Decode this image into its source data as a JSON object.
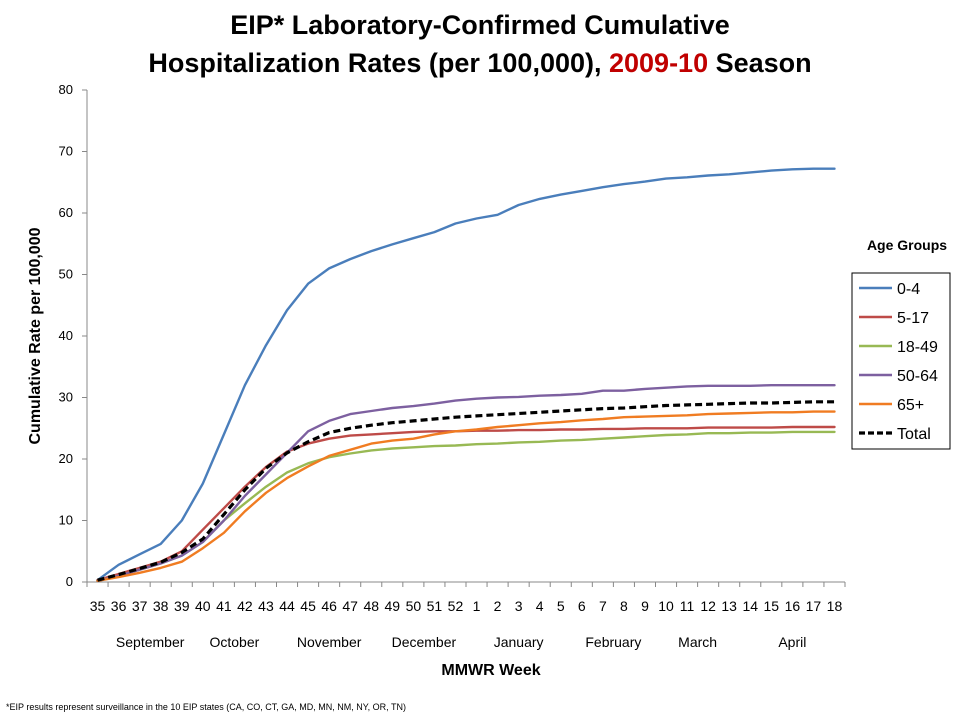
{
  "chart_data": {
    "type": "line",
    "title_line1": "EIP* Laboratory-Confirmed Cumulative",
    "title_line2_before": "Hospitalization Rates (per 100,000), ",
    "title_line2_highlight": "2009-10",
    "title_line2_after": " Season",
    "title_highlight_color": "#c00000",
    "xlabel": "MMWR Week",
    "ylabel": "Cumulative Rate per 100,000",
    "ylim": [
      0,
      80
    ],
    "yticks": [
      "0",
      "10",
      "20",
      "30",
      "40",
      "50",
      "60",
      "70",
      "80"
    ],
    "categories": [
      "35",
      "36",
      "37",
      "38",
      "39",
      "40",
      "41",
      "42",
      "43",
      "44",
      "45",
      "46",
      "47",
      "48",
      "49",
      "50",
      "51",
      "52",
      "1",
      "2",
      "3",
      "4",
      "5",
      "6",
      "7",
      "8",
      "9",
      "10",
      "11",
      "12",
      "13",
      "14",
      "15",
      "16",
      "17",
      "18"
    ],
    "months": [
      {
        "label": "September",
        "week_index": 2.5
      },
      {
        "label": "October",
        "week_index": 6.5
      },
      {
        "label": "November",
        "week_index": 11
      },
      {
        "label": "December",
        "week_index": 15.5
      },
      {
        "label": "January",
        "week_index": 20
      },
      {
        "label": "February",
        "week_index": 24.5
      },
      {
        "label": "March",
        "week_index": 28.5
      },
      {
        "label": "April",
        "week_index": 33
      }
    ],
    "legend_title": "Age Groups",
    "legend_position": "right",
    "grid": false,
    "series": [
      {
        "name": "0-4",
        "color": "#4a7ebb",
        "dashed": false,
        "values": [
          0.3,
          2.8,
          4.5,
          6.2,
          10,
          16,
          24,
          32,
          38.5,
          44.2,
          48.5,
          51,
          52.5,
          53.8,
          54.9,
          55.9,
          56.9,
          58.3,
          59.1,
          59.7,
          61.3,
          62.3,
          63,
          63.6,
          64.2,
          64.7,
          65.1,
          65.6,
          65.8,
          66.1,
          66.3,
          66.6,
          66.9,
          67.1,
          67.2,
          67.2
        ]
      },
      {
        "name": "5-17",
        "color": "#be4b48",
        "dashed": false,
        "values": [
          0.3,
          1.3,
          2.3,
          3.3,
          5,
          8.5,
          12,
          15.5,
          18.7,
          21.2,
          22.5,
          23.3,
          23.8,
          24,
          24.2,
          24.4,
          24.5,
          24.5,
          24.6,
          24.6,
          24.7,
          24.7,
          24.8,
          24.8,
          24.9,
          24.9,
          25,
          25,
          25,
          25.1,
          25.1,
          25.1,
          25.1,
          25.2,
          25.2,
          25.2
        ]
      },
      {
        "name": "18-49",
        "color": "#98b954",
        "dashed": false,
        "values": [
          0.2,
          1,
          2,
          3,
          4.3,
          6.5,
          10,
          12.8,
          15.5,
          17.8,
          19.3,
          20.3,
          20.9,
          21.4,
          21.7,
          21.9,
          22.1,
          22.2,
          22.4,
          22.5,
          22.7,
          22.8,
          23,
          23.1,
          23.3,
          23.5,
          23.7,
          23.9,
          24,
          24.2,
          24.2,
          24.3,
          24.3,
          24.4,
          24.4,
          24.4
        ]
      },
      {
        "name": "50-64",
        "color": "#7d60a0",
        "dashed": false,
        "values": [
          0.2,
          1,
          2,
          3,
          4.3,
          6.5,
          10,
          14,
          17.5,
          21,
          24.5,
          26.2,
          27.3,
          27.8,
          28.3,
          28.6,
          29,
          29.5,
          29.8,
          30,
          30.1,
          30.3,
          30.4,
          30.6,
          31.1,
          31.1,
          31.4,
          31.6,
          31.8,
          31.9,
          31.9,
          31.9,
          32,
          32,
          32,
          32
        ]
      },
      {
        "name": "65+",
        "color": "#f07c22",
        "dashed": false,
        "values": [
          0.2,
          0.8,
          1.5,
          2.3,
          3.3,
          5.5,
          8,
          11.5,
          14.5,
          16.9,
          18.8,
          20.5,
          21.5,
          22.5,
          23,
          23.3,
          24,
          24.5,
          24.8,
          25.2,
          25.5,
          25.8,
          26,
          26.3,
          26.5,
          26.8,
          26.9,
          27,
          27.1,
          27.3,
          27.4,
          27.5,
          27.6,
          27.6,
          27.7,
          27.7
        ]
      },
      {
        "name": "Total",
        "color": "#000000",
        "dashed": true,
        "values": [
          0.3,
          1.2,
          2.2,
          3.2,
          4.8,
          7,
          11,
          15,
          18.5,
          21,
          22.8,
          24.3,
          25,
          25.5,
          25.9,
          26.2,
          26.5,
          26.8,
          27,
          27.2,
          27.4,
          27.6,
          27.8,
          28,
          28.2,
          28.3,
          28.5,
          28.7,
          28.8,
          28.9,
          29,
          29.1,
          29.1,
          29.2,
          29.3,
          29.3
        ]
      }
    ]
  },
  "footnote": "*EIP results represent surveillance in the 10 EIP states (CA, CO, CT, GA, MD, MN, NM, NY, OR, TN)"
}
